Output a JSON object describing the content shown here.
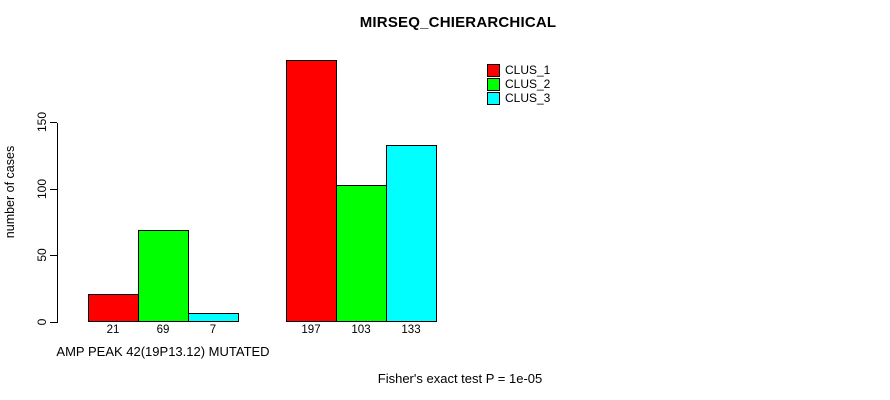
{
  "chart_data": {
    "type": "bar",
    "title": "MIRSEQ_CHIERARCHICAL",
    "ylabel": "number of cases",
    "ylim": [
      0,
      150
    ],
    "yticks": [
      0,
      50,
      100,
      150
    ],
    "grid": false,
    "legend_position": "top-right",
    "bar_value_labels": true,
    "series": [
      {
        "name": "CLUS_1",
        "color": "#ff0000"
      },
      {
        "name": "CLUS_2",
        "color": "#00ff00"
      },
      {
        "name": "CLUS_3",
        "color": "#00ffff"
      }
    ],
    "groups": [
      {
        "label": "AMP PEAK 42(19P13.12) MUTATED",
        "values": [
          21,
          69,
          7
        ]
      },
      {
        "label": "",
        "values": [
          197,
          103,
          133
        ]
      }
    ],
    "footnote": "Fisher's exact test P = 1e-05"
  }
}
